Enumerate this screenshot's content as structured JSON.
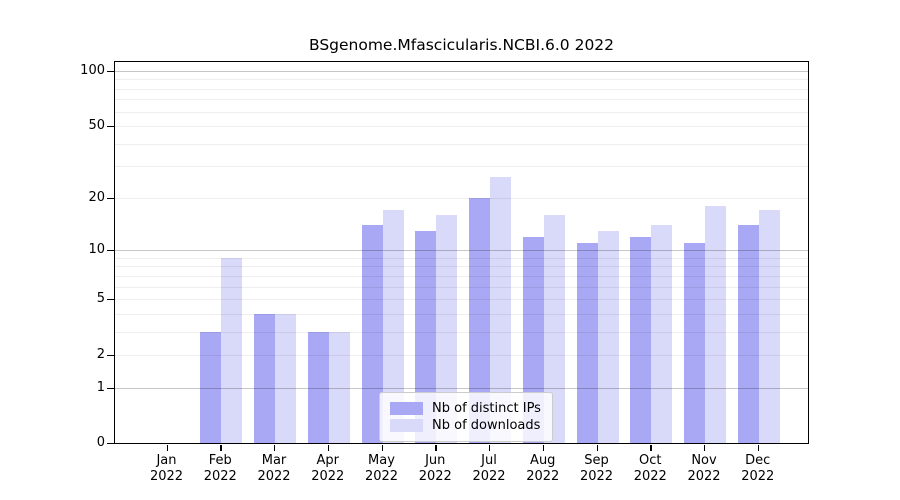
{
  "figure": {
    "title": "BSgenome.Mfascicularis.NCBI.6.0 2022"
  },
  "chart_data": {
    "type": "bar",
    "title": "BSgenome.Mfascicularis.NCBI.6.0 2022",
    "yscale": "log1p",
    "grid": true,
    "legend_position": "lower center",
    "year": "2022",
    "months": [
      "Jan",
      "Feb",
      "Mar",
      "Apr",
      "May",
      "Jun",
      "Jul",
      "Aug",
      "Sep",
      "Oct",
      "Nov",
      "Dec"
    ],
    "categories": [
      "Jan 2022",
      "Feb 2022",
      "Mar 2022",
      "Apr 2022",
      "May 2022",
      "Jun 2022",
      "Jul 2022",
      "Aug 2022",
      "Sep 2022",
      "Oct 2022",
      "Nov 2022",
      "Dec 2022"
    ],
    "y_ticks": [
      0,
      1,
      2,
      5,
      10,
      20,
      50,
      100
    ],
    "ylim": [
      0,
      110
    ],
    "series": [
      {
        "name": "Nb of distinct IPs",
        "color": "#a8a8f4",
        "values": [
          0,
          3,
          4,
          3,
          14,
          13,
          20,
          12,
          11,
          12,
          11,
          14
        ]
      },
      {
        "name": "Nb of downloads",
        "color": "#d9d9f9",
        "values": [
          0,
          9,
          4,
          3,
          17,
          16,
          26,
          16,
          13,
          14,
          18,
          17
        ]
      }
    ]
  },
  "colors": {
    "grid_major": "rgba(0,0,0,0.22)",
    "grid_minor": "rgba(0,0,0,0.065)",
    "spine": "#000000",
    "background": "#ffffff"
  }
}
